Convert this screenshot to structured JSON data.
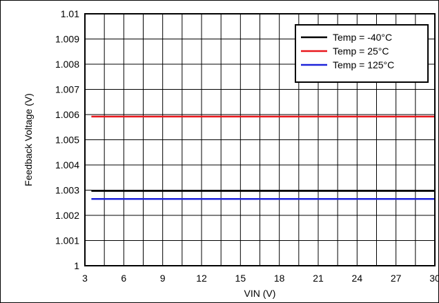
{
  "chart_data": {
    "type": "line",
    "xlabel": "VIN (V)",
    "ylabel": "Feedback Voltage (V)",
    "xlim": [
      3,
      30
    ],
    "ylim": [
      1.0,
      1.01
    ],
    "x_ticks": [
      "3",
      "6",
      "9",
      "12",
      "15",
      "18",
      "21",
      "24",
      "27",
      "30"
    ],
    "y_ticks": [
      "1",
      "1.001",
      "1.002",
      "1.003",
      "1.004",
      "1.005",
      "1.006",
      "1.007",
      "1.008",
      "1.009",
      "1.01"
    ],
    "grid": true,
    "grid_minor_x_step": 1.5,
    "legend_position": "top-right",
    "series": [
      {
        "name": "Temp = -40°C",
        "color": "#000000",
        "x": [
          3.5,
          30
        ],
        "y": [
          1.00297,
          1.00297
        ]
      },
      {
        "name": "Temp = 25°C",
        "color": "#e8161b",
        "x": [
          3.5,
          30
        ],
        "y": [
          1.00592,
          1.00592
        ]
      },
      {
        "name": "Temp = 125°C",
        "color": "#1c22d9",
        "x": [
          3.5,
          30
        ],
        "y": [
          1.00265,
          1.00265
        ]
      }
    ]
  }
}
